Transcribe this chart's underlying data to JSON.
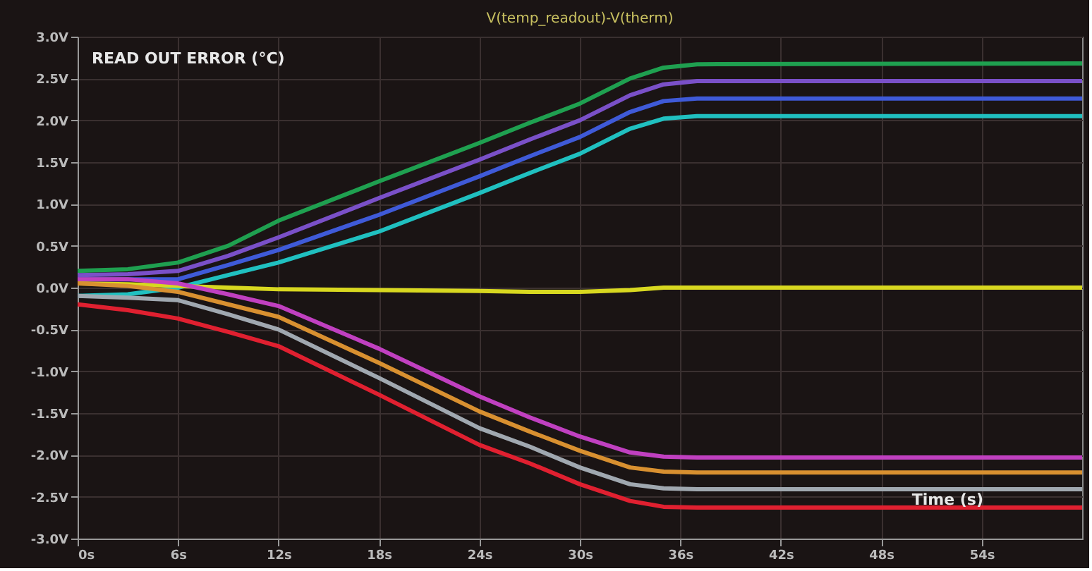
{
  "chart_data": {
    "type": "line",
    "title": "V(temp_readout)-V(therm)",
    "xlabel": "Time (s)",
    "annotations": [
      "READ OUT ERROR (°C)"
    ],
    "xlim": [
      0,
      60
    ],
    "ylim": [
      -3.0,
      3.0
    ],
    "xticks": [
      {
        "value": 0,
        "label": "0s"
      },
      {
        "value": 6,
        "label": "6s"
      },
      {
        "value": 12,
        "label": "12s"
      },
      {
        "value": 18,
        "label": "18s"
      },
      {
        "value": 24,
        "label": "24s"
      },
      {
        "value": 30,
        "label": "30s"
      },
      {
        "value": 36,
        "label": "36s"
      },
      {
        "value": 42,
        "label": "42s"
      },
      {
        "value": 48,
        "label": "48s"
      },
      {
        "value": 54,
        "label": "54s"
      }
    ],
    "yticks": [
      {
        "value": 3.0,
        "label": "3.0V"
      },
      {
        "value": 2.5,
        "label": "2.5V"
      },
      {
        "value": 2.0,
        "label": "2.0V"
      },
      {
        "value": 1.5,
        "label": "1.5V"
      },
      {
        "value": 1.0,
        "label": "1.0V"
      },
      {
        "value": 0.5,
        "label": "0.5V"
      },
      {
        "value": 0.0,
        "label": "0.0V"
      },
      {
        "value": -0.5,
        "label": "-0.5V"
      },
      {
        "value": -1.0,
        "label": "-1.0V"
      },
      {
        "value": -1.5,
        "label": "-1.5V"
      },
      {
        "value": -2.0,
        "label": "-2.0V"
      },
      {
        "value": -2.5,
        "label": "-2.5V"
      },
      {
        "value": -3.0,
        "label": "-3.0V"
      }
    ],
    "grid": true,
    "x": [
      0,
      3,
      6,
      9,
      12,
      18,
      24,
      27,
      30,
      33,
      35,
      37,
      60
    ],
    "series": [
      {
        "color": "#1fa050",
        "values": [
          0.2,
          0.22,
          0.3,
          0.5,
          0.8,
          1.27,
          1.73,
          1.97,
          2.2,
          2.5,
          2.63,
          2.67,
          2.68
        ]
      },
      {
        "color": "#7a50c8",
        "values": [
          0.15,
          0.16,
          0.2,
          0.38,
          0.6,
          1.07,
          1.53,
          1.77,
          2.0,
          2.3,
          2.43,
          2.47,
          2.47
        ]
      },
      {
        "color": "#3f5ad8",
        "values": [
          0.1,
          0.1,
          0.1,
          0.27,
          0.45,
          0.87,
          1.33,
          1.57,
          1.8,
          2.1,
          2.23,
          2.26,
          2.26
        ]
      },
      {
        "color": "#20c0c0",
        "values": [
          -0.1,
          -0.08,
          0.0,
          0.15,
          0.3,
          0.67,
          1.13,
          1.37,
          1.6,
          1.9,
          2.02,
          2.05,
          2.05
        ]
      },
      {
        "color": "#d8d820",
        "values": [
          0.05,
          0.04,
          0.02,
          0.0,
          -0.02,
          -0.03,
          -0.04,
          -0.05,
          -0.05,
          -0.03,
          0.0,
          0.0,
          0.0
        ]
      },
      {
        "color": "#c040c0",
        "values": [
          0.1,
          0.1,
          0.05,
          -0.08,
          -0.22,
          -0.73,
          -1.3,
          -1.55,
          -1.78,
          -1.97,
          -2.02,
          -2.03,
          -2.03
        ]
      },
      {
        "color": "#d89030",
        "values": [
          0.05,
          0.02,
          -0.05,
          -0.2,
          -0.35,
          -0.9,
          -1.48,
          -1.72,
          -1.95,
          -2.15,
          -2.2,
          -2.21,
          -2.21
        ]
      },
      {
        "color": "#a0a8b0",
        "values": [
          -0.1,
          -0.12,
          -0.15,
          -0.32,
          -0.5,
          -1.08,
          -1.68,
          -1.9,
          -2.15,
          -2.35,
          -2.4,
          -2.41,
          -2.41
        ]
      },
      {
        "color": "#e02030",
        "values": [
          -0.2,
          -0.27,
          -0.37,
          -0.53,
          -0.7,
          -1.28,
          -1.88,
          -2.1,
          -2.35,
          -2.55,
          -2.62,
          -2.63,
          -2.63
        ]
      }
    ]
  }
}
